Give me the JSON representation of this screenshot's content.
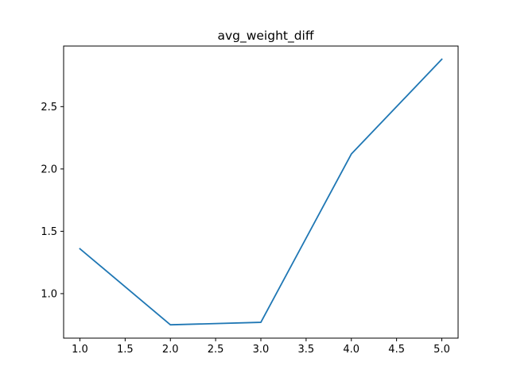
{
  "chart_data": {
    "type": "line",
    "title": "avg_weight_diff",
    "xlabel": "",
    "ylabel": "",
    "x": [
      1.0,
      2.0,
      3.0,
      4.0,
      5.0
    ],
    "series": [
      {
        "values": [
          1.36,
          0.75,
          0.77,
          2.12,
          2.88
        ]
      }
    ],
    "xlim": [
      0.82,
      5.18
    ],
    "ylim": [
      0.643,
      2.986
    ],
    "xticks": [
      1.0,
      1.5,
      2.0,
      2.5,
      3.0,
      3.5,
      4.0,
      4.5,
      5.0
    ],
    "xtick_labels": [
      "1.0",
      "1.5",
      "2.0",
      "2.5",
      "3.0",
      "3.5",
      "4.0",
      "4.5",
      "5.0"
    ],
    "yticks": [
      1.0,
      1.5,
      2.0,
      2.5
    ],
    "ytick_labels": [
      "1.0",
      "1.5",
      "2.0",
      "2.5"
    ],
    "grid": false,
    "line_color": "#1f77b4"
  }
}
